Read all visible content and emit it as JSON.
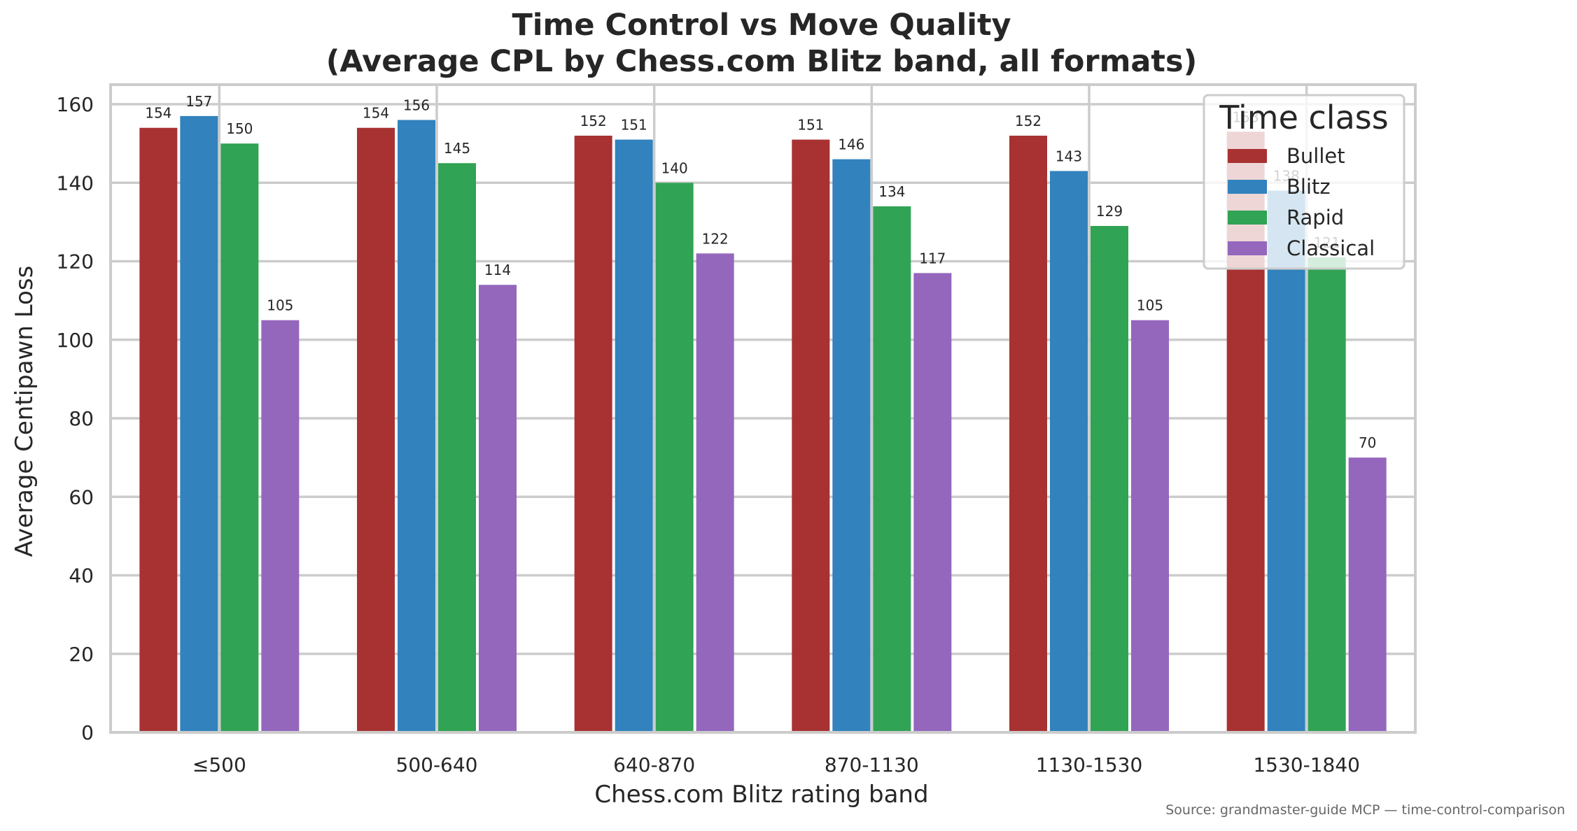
{
  "chart_data": {
    "type": "bar",
    "title_line1": "Time Control vs Move Quality",
    "title_line2": "(Average CPL by Chess.com Blitz band, all formats)",
    "xlabel": "Chess.com Blitz rating band",
    "ylabel": "Average Centipawn Loss",
    "categories": [
      "≤500",
      "500-640",
      "640-870",
      "870-1130",
      "1130-1530",
      "1530-1840"
    ],
    "ylim": [
      0,
      165
    ],
    "yticks": [
      0,
      20,
      40,
      60,
      80,
      100,
      120,
      140,
      160
    ],
    "grid": true,
    "legend_title": "Time class",
    "legend_position": "top-right",
    "series": [
      {
        "name": "Bullet",
        "color": "#a83232",
        "values": [
          154,
          154,
          152,
          151,
          152,
          153
        ],
        "labels": [
          "154",
          "154",
          "152",
          "151",
          "152",
          "153"
        ]
      },
      {
        "name": "Blitz",
        "color": "#3182bd",
        "values": [
          157,
          156,
          151,
          146,
          143,
          138
        ],
        "labels": [
          "157",
          "156",
          "151",
          "146",
          "143",
          "138"
        ]
      },
      {
        "name": "Rapid",
        "color": "#31a354",
        "values": [
          150,
          145,
          140,
          134,
          129,
          121
        ],
        "labels": [
          "150",
          "145",
          "140",
          "134",
          "129",
          "121"
        ]
      },
      {
        "name": "Classical",
        "color": "#9467bd",
        "values": [
          105,
          114,
          122,
          117,
          105,
          70
        ],
        "labels": [
          "105",
          "114",
          "122",
          "117",
          "105",
          "70"
        ]
      }
    ],
    "source": "Source: grandmaster-guide MCP — time-control-comparison"
  }
}
